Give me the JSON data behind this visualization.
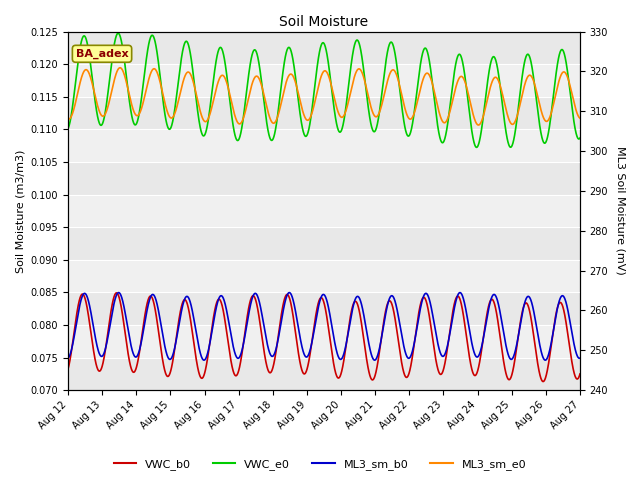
{
  "title": "Soil Moisture",
  "ylabel_left": "Soil Moisture (m3/m3)",
  "ylabel_right": "ML3 Soil Moisture (mV)",
  "ylim_left": [
    0.07,
    0.125
  ],
  "ylim_right": [
    240,
    330
  ],
  "annotation": "BA_adex",
  "background_color": "#ffffff",
  "plot_bg_light": "#e8e8e8",
  "plot_bg_dark": "#d0d0d0",
  "series": {
    "VWC_b0": {
      "color": "#cc0000",
      "linewidth": 1.2
    },
    "VWC_e0": {
      "color": "#00cc00",
      "linewidth": 1.2
    },
    "ML3_sm_b0": {
      "color": "#0000cc",
      "linewidth": 1.2
    },
    "ML3_sm_e0": {
      "color": "#ff8800",
      "linewidth": 1.2
    }
  },
  "xtick_labels": [
    "Aug 12",
    "Aug 13",
    "Aug 14",
    "Aug 15",
    "Aug 16",
    "Aug 17",
    "Aug 18",
    "Aug 19",
    "Aug 20",
    "Aug 21",
    "Aug 22",
    "Aug 23",
    "Aug 24",
    "Aug 25",
    "Aug 26",
    "Aug 27"
  ],
  "yticks_left": [
    0.07,
    0.075,
    0.08,
    0.085,
    0.09,
    0.095,
    0.1,
    0.105,
    0.11,
    0.115,
    0.12,
    0.125
  ],
  "yticks_right": [
    240,
    250,
    260,
    270,
    280,
    290,
    300,
    310,
    320,
    330
  ]
}
